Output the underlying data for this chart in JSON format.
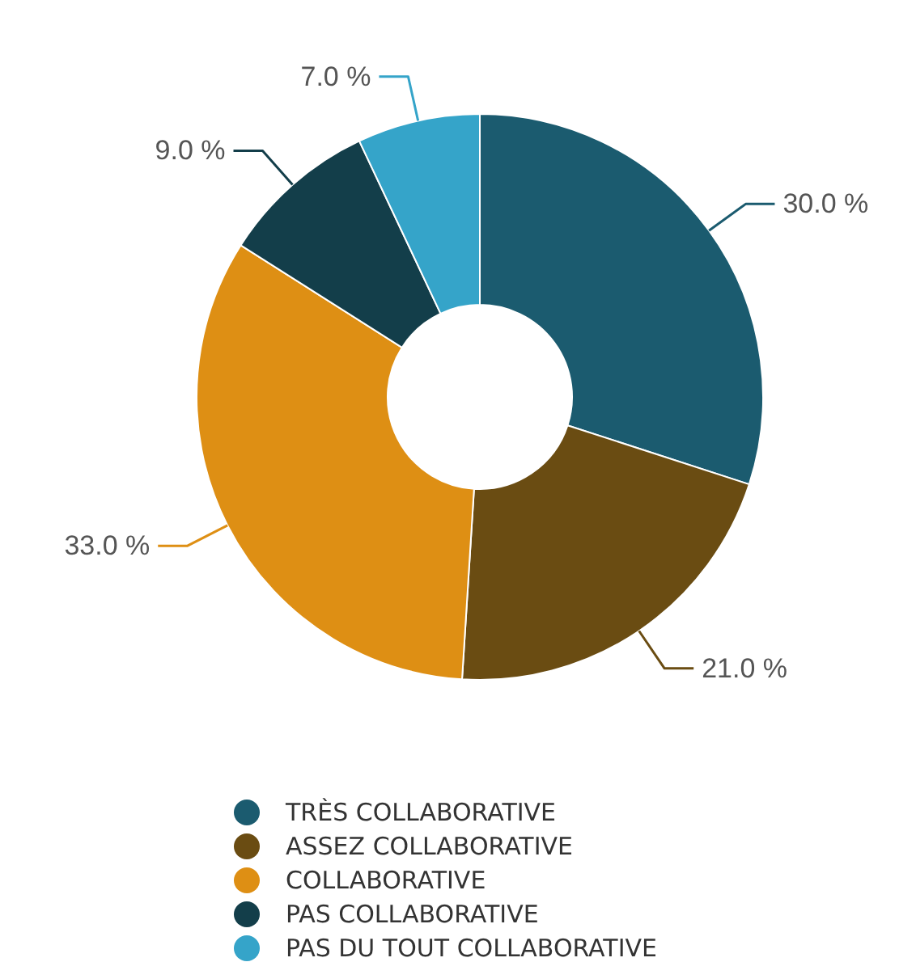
{
  "chart_data": {
    "type": "donut",
    "categories": [
      "TRÈS COLLABORATIVE",
      "ASSEZ COLLABORATIVE",
      "COLLABORATIVE",
      "PAS COLLABORATIVE",
      "PAS DU TOUT COLLABORATIVE"
    ],
    "values": [
      30,
      21,
      33,
      9,
      7
    ],
    "value_labels": [
      "30.0 %",
      "21.0 %",
      "33.0 %",
      "9.0 %",
      "7.0 %"
    ],
    "colors": [
      "#1b5b6f",
      "#6a4c12",
      "#de8f14",
      "#133e4a",
      "#35a4c9"
    ],
    "legend": "bottom"
  }
}
